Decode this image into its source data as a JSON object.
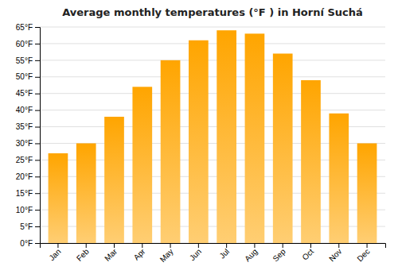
{
  "chart_data": {
    "type": "bar",
    "title": "Average monthly temperatures (°F ) in Horní Suchá",
    "categories": [
      "Jan",
      "Feb",
      "Mar",
      "Apr",
      "May",
      "Jun",
      "Jul",
      "Aug",
      "Sep",
      "Oct",
      "Nov",
      "Dec"
    ],
    "values": [
      27,
      30,
      38,
      47,
      55,
      61,
      64,
      63,
      57,
      49,
      39,
      30
    ],
    "color": "#FFA500",
    "ylim": [
      0,
      65
    ],
    "yticks": [
      {
        "value": 0,
        "label": "0°F"
      },
      {
        "value": 5,
        "label": "5°F"
      },
      {
        "value": 10,
        "label": "10°F"
      },
      {
        "value": 15,
        "label": "15°F"
      },
      {
        "value": 20,
        "label": "20°F"
      },
      {
        "value": 25,
        "label": "25°F"
      },
      {
        "value": 30,
        "label": "30°F"
      },
      {
        "value": 35,
        "label": "35°F"
      },
      {
        "value": 40,
        "label": "40°F"
      },
      {
        "value": 45,
        "label": "45°F"
      },
      {
        "value": 50,
        "label": "50°F"
      },
      {
        "value": 55,
        "label": "55°F"
      },
      {
        "value": 60,
        "label": "60°F"
      },
      {
        "value": 65,
        "label": "65°F"
      }
    ],
    "grid": true
  }
}
